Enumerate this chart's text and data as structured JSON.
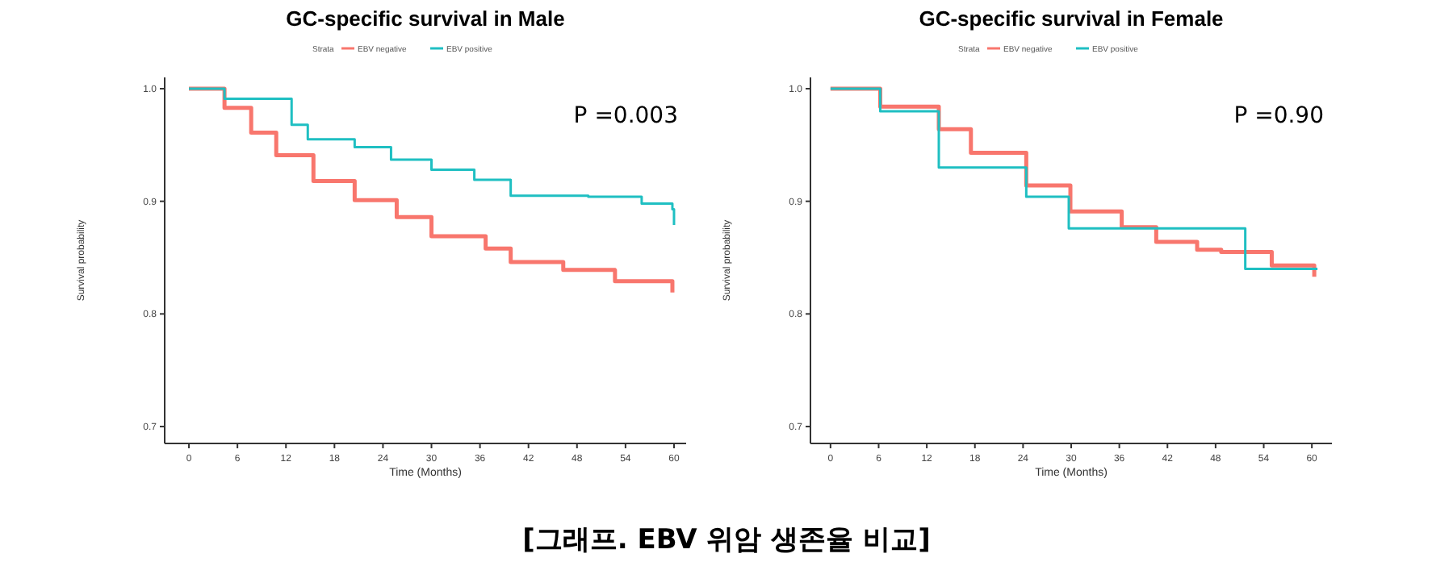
{
  "chart_data": [
    {
      "type": "step",
      "title": "GC-specific survival in Male",
      "xlabel": "Time (Months)",
      "ylabel": "Survival probability",
      "legend_title": "Strata",
      "legend": "top",
      "grid": false,
      "xlim": [
        -3,
        61.5
      ],
      "xticks": [
        0,
        6,
        12,
        18,
        24,
        30,
        36,
        42,
        48,
        54,
        60
      ],
      "ylim": [
        0.685,
        1.01
      ],
      "yticks": [
        0.7,
        0.8,
        0.9,
        {
          "value": 1,
          "label": "1.0"
        }
      ],
      "annotations": [
        "P =0.003",
        "[그래프. EBV 위암 생존율 비교]"
      ],
      "series": [
        {
          "name": "EBV negative",
          "color": "#f8766d",
          "x": [
            0,
            4.4,
            7.7,
            10.8,
            15.4,
            20.5,
            25.7,
            30,
            36.7,
            39.8,
            46.3,
            52.7,
            59.8
          ],
          "values": [
            1,
            0.983,
            0.961,
            0.941,
            0.918,
            0.901,
            0.886,
            0.869,
            0.858,
            0.846,
            0.839,
            0.829,
            0.819
          ]
        },
        {
          "name": "EBV positive",
          "color": "#1fbfc2",
          "x": [
            0,
            4.4,
            12.7,
            14.7,
            20.5,
            25,
            30,
            35.3,
            39.8,
            49.4,
            56,
            59.8,
            60
          ],
          "values": [
            1,
            0.991,
            0.968,
            0.955,
            0.948,
            0.937,
            0.928,
            0.919,
            0.905,
            0.904,
            0.898,
            0.893,
            0.879
          ]
        }
      ]
    },
    {
      "type": "step",
      "title": "GC-specific survival in Female",
      "xlabel": "Time (Months)",
      "ylabel": "Survival probability",
      "legend_title": "Strata",
      "legend": "top",
      "grid": false,
      "xlim": [
        -2.5,
        62.5
      ],
      "xticks": [
        0,
        6,
        12,
        18,
        24,
        30,
        36,
        42,
        48,
        54,
        60
      ],
      "ylim": [
        0.685,
        1.01
      ],
      "yticks": [
        0.7,
        0.8,
        0.9,
        {
          "value": 1,
          "label": "1.0"
        }
      ],
      "annotations": [
        "P =0.90"
      ],
      "series": [
        {
          "name": "EBV negative",
          "color": "#f8766d",
          "x": [
            0,
            6.2,
            13.5,
            17.5,
            24.4,
            29.9,
            36.3,
            40.6,
            45.7,
            48.7,
            55,
            60.3
          ],
          "values": [
            1,
            0.984,
            0.964,
            0.943,
            0.914,
            0.891,
            0.877,
            0.864,
            0.857,
            0.855,
            0.843,
            0.833
          ]
        },
        {
          "name": "EBV positive",
          "color": "#1fbfc2",
          "x": [
            0,
            6.2,
            13.5,
            24.4,
            29.7,
            51.7,
            60.7
          ],
          "values": [
            1,
            0.98,
            0.93,
            0.904,
            0.876,
            0.84,
            0.84
          ]
        }
      ]
    }
  ]
}
